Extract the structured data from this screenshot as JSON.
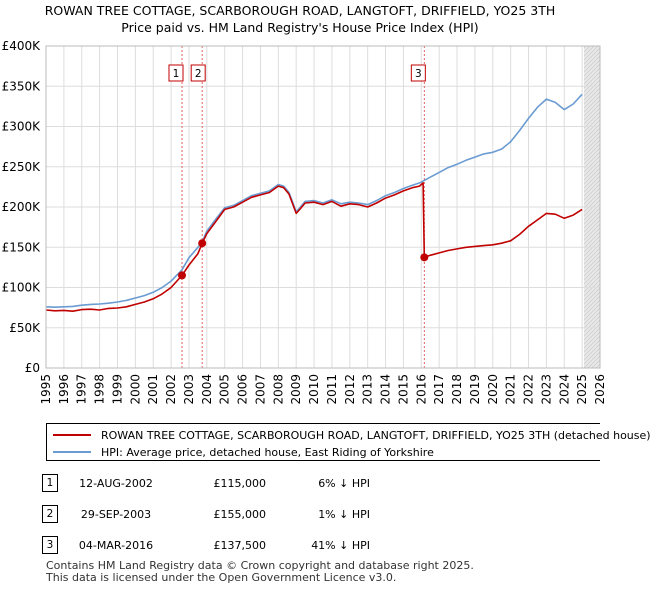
{
  "chart_data": {
    "type": "line",
    "title": "ROWAN TREE COTTAGE, SCARBOROUGH ROAD, LANGTOFT, DRIFFIELD, YO25 3TH",
    "subtitle": "Price paid vs. HM Land Registry's House Price Index (HPI)",
    "xlabel": "",
    "ylabel": "",
    "xlim": [
      1995,
      2026
    ],
    "ylim": [
      0,
      400000
    ],
    "x_ticks": [
      "1995",
      "1996",
      "1997",
      "1998",
      "1999",
      "2000",
      "2001",
      "2002",
      "2003",
      "2004",
      "2005",
      "2006",
      "2007",
      "2008",
      "2009",
      "2010",
      "2011",
      "2012",
      "2013",
      "2014",
      "2015",
      "2016",
      "2017",
      "2018",
      "2019",
      "2020",
      "2021",
      "2022",
      "2023",
      "2024",
      "2025",
      "2026"
    ],
    "y_ticks": [
      {
        "value": 0,
        "label": "£0"
      },
      {
        "value": 50000,
        "label": "£50K"
      },
      {
        "value": 100000,
        "label": "£100K"
      },
      {
        "value": 150000,
        "label": "£150K"
      },
      {
        "value": 200000,
        "label": "£200K"
      },
      {
        "value": 250000,
        "label": "£250K"
      },
      {
        "value": 300000,
        "label": "£300K"
      },
      {
        "value": 350000,
        "label": "£350K"
      },
      {
        "value": 400000,
        "label": "£400K"
      }
    ],
    "grid": true,
    "future_shading_from": 2025.1,
    "series": [
      {
        "name": "ROWAN TREE COTTAGE, SCARBOROUGH ROAD, LANGTOFT, DRIFFIELD, YO25 3TH (detached house)",
        "color": "#c00000",
        "x": [
          1995.0,
          1995.5,
          1996.0,
          1996.5,
          1997.0,
          1997.5,
          1998.0,
          1998.5,
          1999.0,
          1999.5,
          2000.0,
          2000.5,
          2001.0,
          2001.5,
          2002.0,
          2002.61,
          2003.0,
          2003.5,
          2003.74,
          2004.0,
          2004.5,
          2005.0,
          2005.5,
          2006.0,
          2006.5,
          2007.0,
          2007.5,
          2008.0,
          2008.3,
          2008.6,
          2009.0,
          2009.2,
          2009.5,
          2010.0,
          2010.5,
          2011.0,
          2011.5,
          2012.0,
          2012.5,
          2013.0,
          2013.5,
          2014.0,
          2014.5,
          2015.0,
          2015.5,
          2015.9,
          2016.1,
          2016.17,
          2016.5,
          2017.0,
          2017.5,
          2018.0,
          2018.5,
          2019.0,
          2019.5,
          2020.0,
          2020.5,
          2021.0,
          2021.5,
          2022.0,
          2022.5,
          2023.0,
          2023.5,
          2024.0,
          2024.5,
          2025.0
        ],
        "values": [
          72000,
          71000,
          71500,
          70500,
          72500,
          73000,
          72000,
          74000,
          74500,
          76000,
          79000,
          82000,
          86000,
          92000,
          100000,
          115000,
          128000,
          142000,
          155000,
          167000,
          182000,
          197000,
          200000,
          206000,
          212000,
          215000,
          218000,
          226000,
          224000,
          216000,
          192000,
          197000,
          205000,
          206000,
          203000,
          207000,
          201000,
          204000,
          203000,
          200000,
          205000,
          211000,
          215000,
          220000,
          224000,
          226000,
          230000,
          137500,
          140000,
          143000,
          146000,
          148000,
          150000,
          151000,
          152000,
          153000,
          155000,
          158000,
          166000,
          176000,
          184000,
          192000,
          191000,
          186000,
          190000,
          197000
        ]
      },
      {
        "name": "HPI: Average price, detached house, East Riding of Yorkshire",
        "color": "#6a9bd2",
        "x": [
          1995.0,
          1995.5,
          1996.0,
          1996.5,
          1997.0,
          1997.5,
          1998.0,
          1998.5,
          1999.0,
          1999.5,
          2000.0,
          2000.5,
          2001.0,
          2001.5,
          2002.0,
          2002.61,
          2003.0,
          2003.5,
          2003.74,
          2004.0,
          2004.5,
          2005.0,
          2005.5,
          2006.0,
          2006.5,
          2007.0,
          2007.5,
          2008.0,
          2008.3,
          2008.6,
          2009.0,
          2009.2,
          2009.5,
          2010.0,
          2010.5,
          2011.0,
          2011.5,
          2012.0,
          2012.5,
          2013.0,
          2013.5,
          2014.0,
          2014.5,
          2015.0,
          2015.5,
          2015.9,
          2016.17,
          2016.5,
          2017.0,
          2017.5,
          2018.0,
          2018.5,
          2019.0,
          2019.5,
          2020.0,
          2020.5,
          2021.0,
          2021.5,
          2022.0,
          2022.5,
          2023.0,
          2023.5,
          2024.0,
          2024.5,
          2025.0
        ],
        "values": [
          76000,
          75500,
          76000,
          76500,
          78000,
          79000,
          79500,
          80500,
          82000,
          84000,
          87000,
          90000,
          94000,
          100000,
          108000,
          122000,
          137000,
          150000,
          157000,
          170000,
          185000,
          199000,
          202000,
          208000,
          214000,
          217000,
          220000,
          228000,
          226000,
          218000,
          194000,
          199000,
          207000,
          208000,
          205000,
          209000,
          204000,
          206000,
          205000,
          203000,
          208000,
          214000,
          218000,
          223000,
          227000,
          230000,
          233000,
          237000,
          243000,
          249000,
          253000,
          258000,
          262000,
          266000,
          268000,
          272000,
          281000,
          295000,
          310000,
          324000,
          334000,
          330000,
          321000,
          328000,
          340000
        ]
      }
    ],
    "annotations": [
      {
        "label": "1",
        "x": 2002.61,
        "y": 115000
      },
      {
        "label": "2",
        "x": 2003.74,
        "y": 155000
      },
      {
        "label": "3",
        "x": 2016.17,
        "y": 137500
      }
    ]
  },
  "legend": {
    "property_label": "ROWAN TREE COTTAGE, SCARBOROUGH ROAD, LANGTOFT, DRIFFIELD, YO25 3TH (detached house)",
    "hpi_label": "HPI: Average price, detached house, East Riding of Yorkshire",
    "property_color": "#c00000",
    "hpi_color": "#6a9bd2"
  },
  "sales": [
    {
      "num": "1",
      "date": "12-AUG-2002",
      "price": "£115,000",
      "hpi": "6% ↓ HPI"
    },
    {
      "num": "2",
      "date": "29-SEP-2003",
      "price": "£155,000",
      "hpi": "1% ↓ HPI"
    },
    {
      "num": "3",
      "date": "04-MAR-2016",
      "price": "£137,500",
      "hpi": "41% ↓ HPI"
    }
  ],
  "footer": {
    "line1": "Contains HM Land Registry data © Crown copyright and database right 2025.",
    "line2": "This data is licensed under the Open Government Licence v3.0."
  }
}
